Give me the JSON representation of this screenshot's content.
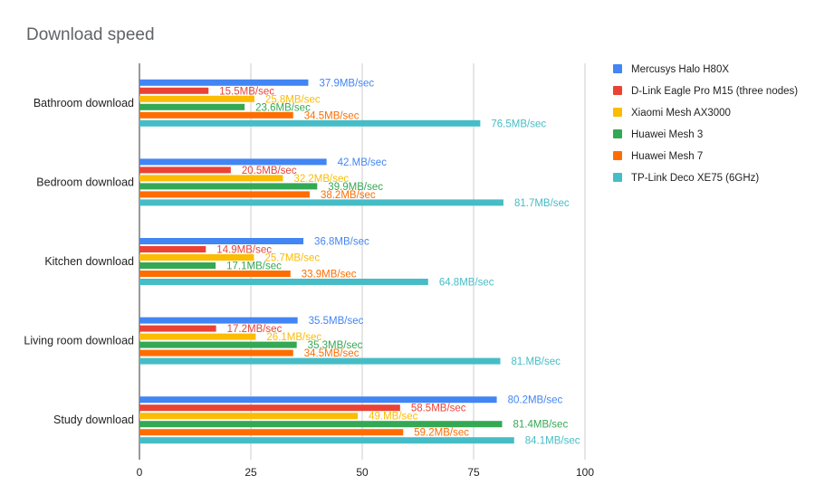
{
  "chart_data": {
    "type": "bar",
    "orientation": "horizontal",
    "title": "Download speed",
    "xlabel": "",
    "ylabel": "",
    "xlim": [
      0,
      100
    ],
    "xticks": [
      "0",
      "25",
      "50",
      "75",
      "100"
    ],
    "grid": true,
    "legend_position": "right",
    "categories": [
      "Bathroom download",
      "Bedroom download",
      "Kitchen download",
      "Living room download",
      "Study download"
    ],
    "series": [
      {
        "name": "Mercusys Halo H80X",
        "color": "#4285f4",
        "values": [
          37.9,
          42,
          36.8,
          35.5,
          80.2
        ],
        "labels": [
          "37.9MB/sec",
          "42.MB/sec",
          "36.8MB/sec",
          "35.5MB/sec",
          "80.2MB/sec"
        ]
      },
      {
        "name": "D-Link Eagle Pro M15 (three nodes)",
        "color": "#ea4335",
        "values": [
          15.5,
          20.5,
          14.9,
          17.2,
          58.5
        ],
        "labels": [
          "15.5MB/sec",
          "20.5MB/sec",
          "14.9MB/sec",
          "17.2MB/sec",
          "58.5MB/sec"
        ]
      },
      {
        "name": "Xiaomi Mesh AX3000",
        "color": "#fbbc04",
        "values": [
          25.8,
          32.2,
          25.7,
          26.1,
          49
        ],
        "labels": [
          "25.8MB/sec",
          "32.2MB/sec",
          "25.7MB/sec",
          "26.1MB/sec",
          "49.MB/sec"
        ]
      },
      {
        "name": "Huawei Mesh 3",
        "color": "#34a853",
        "values": [
          23.6,
          39.9,
          17.1,
          35.3,
          81.4
        ],
        "labels": [
          "23.6MB/sec",
          "39.9MB/sec",
          "17.1MB/sec",
          "35.3MB/sec",
          "81.4MB/sec"
        ]
      },
      {
        "name": "Huawei Mesh 7",
        "color": "#ff6d01",
        "values": [
          34.5,
          38.2,
          33.9,
          34.5,
          59.2
        ],
        "labels": [
          "34.5MB/sec",
          "38.2MB/sec",
          "33.9MB/sec",
          "34.5MB/sec",
          "59.2MB/sec"
        ]
      },
      {
        "name": "TP-Link Deco XE75 (6GHz)",
        "color": "#46bdc6",
        "values": [
          76.5,
          81.7,
          64.8,
          81,
          84.1
        ],
        "labels": [
          "76.5MB/sec",
          "81.7MB/sec",
          "64.8MB/sec",
          "81.MB/sec",
          "84.1MB/sec"
        ]
      }
    ]
  }
}
